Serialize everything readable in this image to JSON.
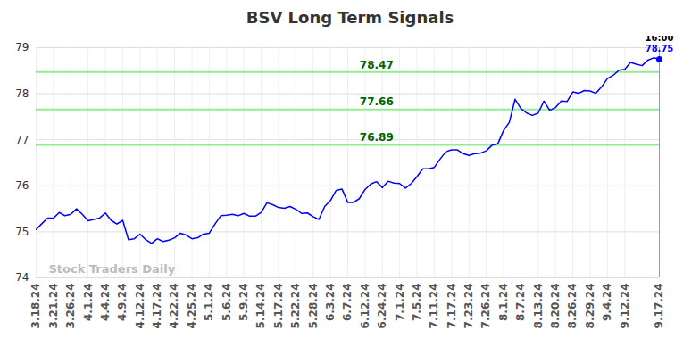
{
  "chart_data": {
    "type": "line",
    "title": "BSV Long Term Signals",
    "categories": [
      "3.18.24",
      null,
      null,
      "3.21.24",
      null,
      null,
      "3.26.24",
      null,
      null,
      "4.1.24",
      null,
      null,
      "4.4.24",
      null,
      null,
      "4.9.24",
      null,
      null,
      "4.12.24",
      null,
      null,
      "4.17.24",
      null,
      null,
      "4.22.24",
      null,
      null,
      "4.25.24",
      null,
      null,
      "5.1.24",
      null,
      null,
      "5.6.24",
      null,
      null,
      "5.9.24",
      null,
      null,
      "5.14.24",
      null,
      null,
      "5.17.24",
      null,
      null,
      "5.22.24",
      null,
      null,
      "5.28.24",
      null,
      null,
      "6.3.24",
      null,
      null,
      "6.7.24",
      null,
      null,
      "6.12.24",
      null,
      null,
      "6.24.24",
      null,
      null,
      "7.1.24",
      null,
      null,
      "7.5.24",
      null,
      null,
      "7.11.24",
      null,
      null,
      "7.17.24",
      null,
      null,
      "7.23.24",
      null,
      null,
      "7.26.24",
      null,
      null,
      "8.1.24",
      null,
      null,
      "8.7.24",
      null,
      null,
      "8.13.24",
      null,
      null,
      "8.20.24",
      null,
      null,
      "8.26.24",
      null,
      null,
      "8.29.24",
      null,
      null,
      "9.4.24",
      null,
      null,
      "9.12.24",
      null,
      null,
      null,
      null,
      null,
      "9.17.24"
    ],
    "values": [
      75.05,
      75.18,
      75.3,
      75.3,
      75.42,
      75.35,
      75.38,
      75.5,
      75.38,
      75.24,
      75.27,
      75.3,
      75.41,
      75.25,
      75.17,
      75.25,
      74.83,
      74.85,
      74.95,
      74.83,
      74.75,
      74.85,
      74.79,
      74.82,
      74.87,
      74.97,
      74.93,
      74.85,
      74.87,
      74.95,
      74.97,
      75.17,
      75.35,
      75.36,
      75.38,
      75.35,
      75.4,
      75.34,
      75.34,
      75.42,
      75.63,
      75.59,
      75.53,
      75.51,
      75.55,
      75.49,
      75.4,
      75.41,
      75.33,
      75.27,
      75.55,
      75.68,
      75.9,
      75.93,
      75.64,
      75.64,
      75.72,
      75.92,
      76.04,
      76.09,
      75.96,
      76.1,
      76.06,
      76.05,
      75.95,
      76.05,
      76.2,
      76.37,
      76.37,
      76.4,
      76.58,
      76.74,
      76.78,
      76.78,
      76.7,
      76.66,
      76.7,
      76.71,
      76.76,
      76.88,
      76.91,
      77.2,
      77.38,
      77.88,
      77.68,
      77.58,
      77.53,
      77.58,
      77.84,
      77.64,
      77.7,
      77.84,
      77.83,
      78.04,
      78.01,
      78.07,
      78.06,
      78.01,
      78.15,
      78.33,
      78.4,
      78.51,
      78.53,
      78.68,
      78.64,
      78.61,
      78.73,
      78.78,
      78.75
    ],
    "color": "#0000ff",
    "ylim": [
      74,
      79
    ],
    "yticks": [
      74,
      75,
      76,
      77,
      78,
      79
    ],
    "grid": true,
    "reference_lines": [
      76.89,
      77.66,
      78.47
    ],
    "last_point": {
      "time": "16:00",
      "value": 78.75
    },
    "watermark": "Stock Traders Daily"
  }
}
